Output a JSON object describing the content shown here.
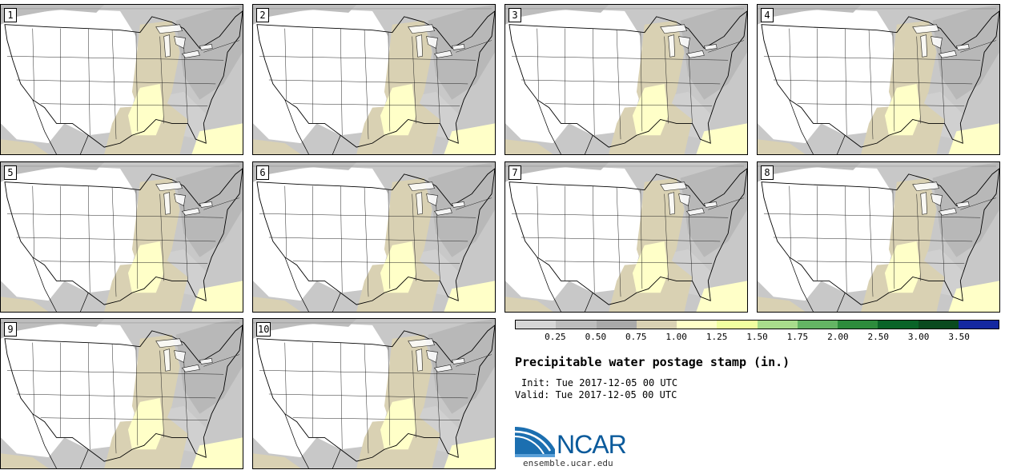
{
  "panels": [
    {
      "label": "1"
    },
    {
      "label": "2"
    },
    {
      "label": "3"
    },
    {
      "label": "4"
    },
    {
      "label": "5"
    },
    {
      "label": "6"
    },
    {
      "label": "7"
    },
    {
      "label": "8"
    },
    {
      "label": "9"
    },
    {
      "label": "10"
    }
  ],
  "legend": {
    "colors": [
      "#d6d6d6",
      "#bdbdbd",
      "#a9a9a9",
      "#d9d1b3",
      "#ffffc8",
      "#f0ffa0",
      "#a8dc8c",
      "#64b464",
      "#2d8c3c",
      "#0a6428",
      "#0a4a1e",
      "#1428a0"
    ],
    "labels": [
      "0.25",
      "0.50",
      "0.75",
      "1.00",
      "1.25",
      "1.50",
      "1.75",
      "2.00",
      "2.50",
      "3.00",
      "3.50"
    ]
  },
  "title": "Precipitable water postage stamp (in.)",
  "init": "Init: Tue 2017-12-05 00 UTC",
  "valid": "Valid: Tue 2017-12-05 00 UTC",
  "logo": {
    "text": "NCAR",
    "url": "ensemble.ucar.edu"
  }
}
